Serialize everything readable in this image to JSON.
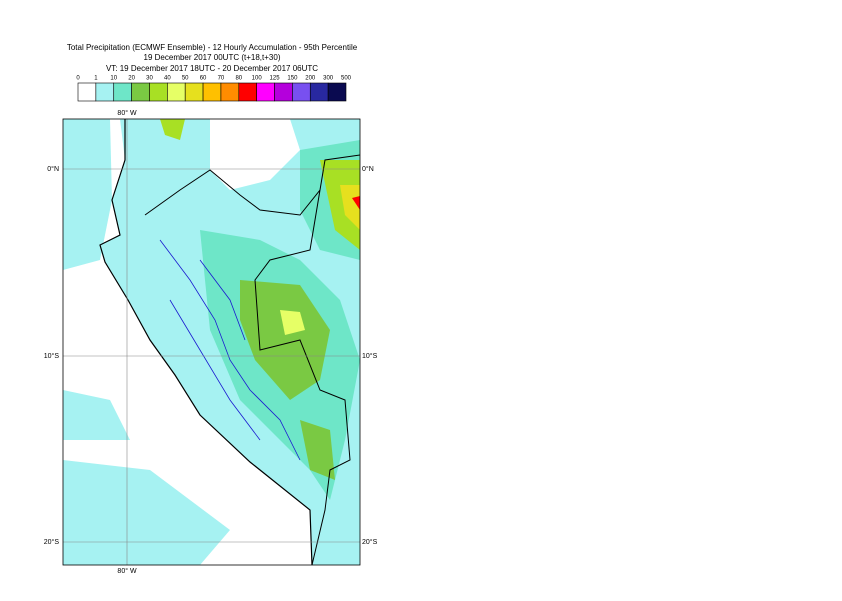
{
  "title": {
    "line1": "Total Precipitation (ECMWF Ensemble) - 12 Hourly Accumulation - 95th Percentile",
    "line2": "19 December 2017 00UTC (t+18,t+30)",
    "line3": "VT: 19 December 2017 18UTC - 20 December 2017 06UTC"
  },
  "legend": {
    "ticks": [
      0,
      1,
      10,
      20,
      30,
      40,
      50,
      60,
      70,
      80,
      100,
      125,
      150,
      200,
      300,
      500
    ],
    "colors": [
      "#ffffff",
      "#a6f2f2",
      "#6ee6c8",
      "#7ac943",
      "#a8e024",
      "#e6ff66",
      "#e6e01e",
      "#ffc000",
      "#ff8c00",
      "#ff0000",
      "#ff00ff",
      "#b400dc",
      "#7850f0",
      "#2828a0",
      "#0a0a50"
    ]
  },
  "map": {
    "lon_label": "80° W",
    "lat_labels": [
      "0°N",
      "10°S",
      "20°S"
    ]
  }
}
